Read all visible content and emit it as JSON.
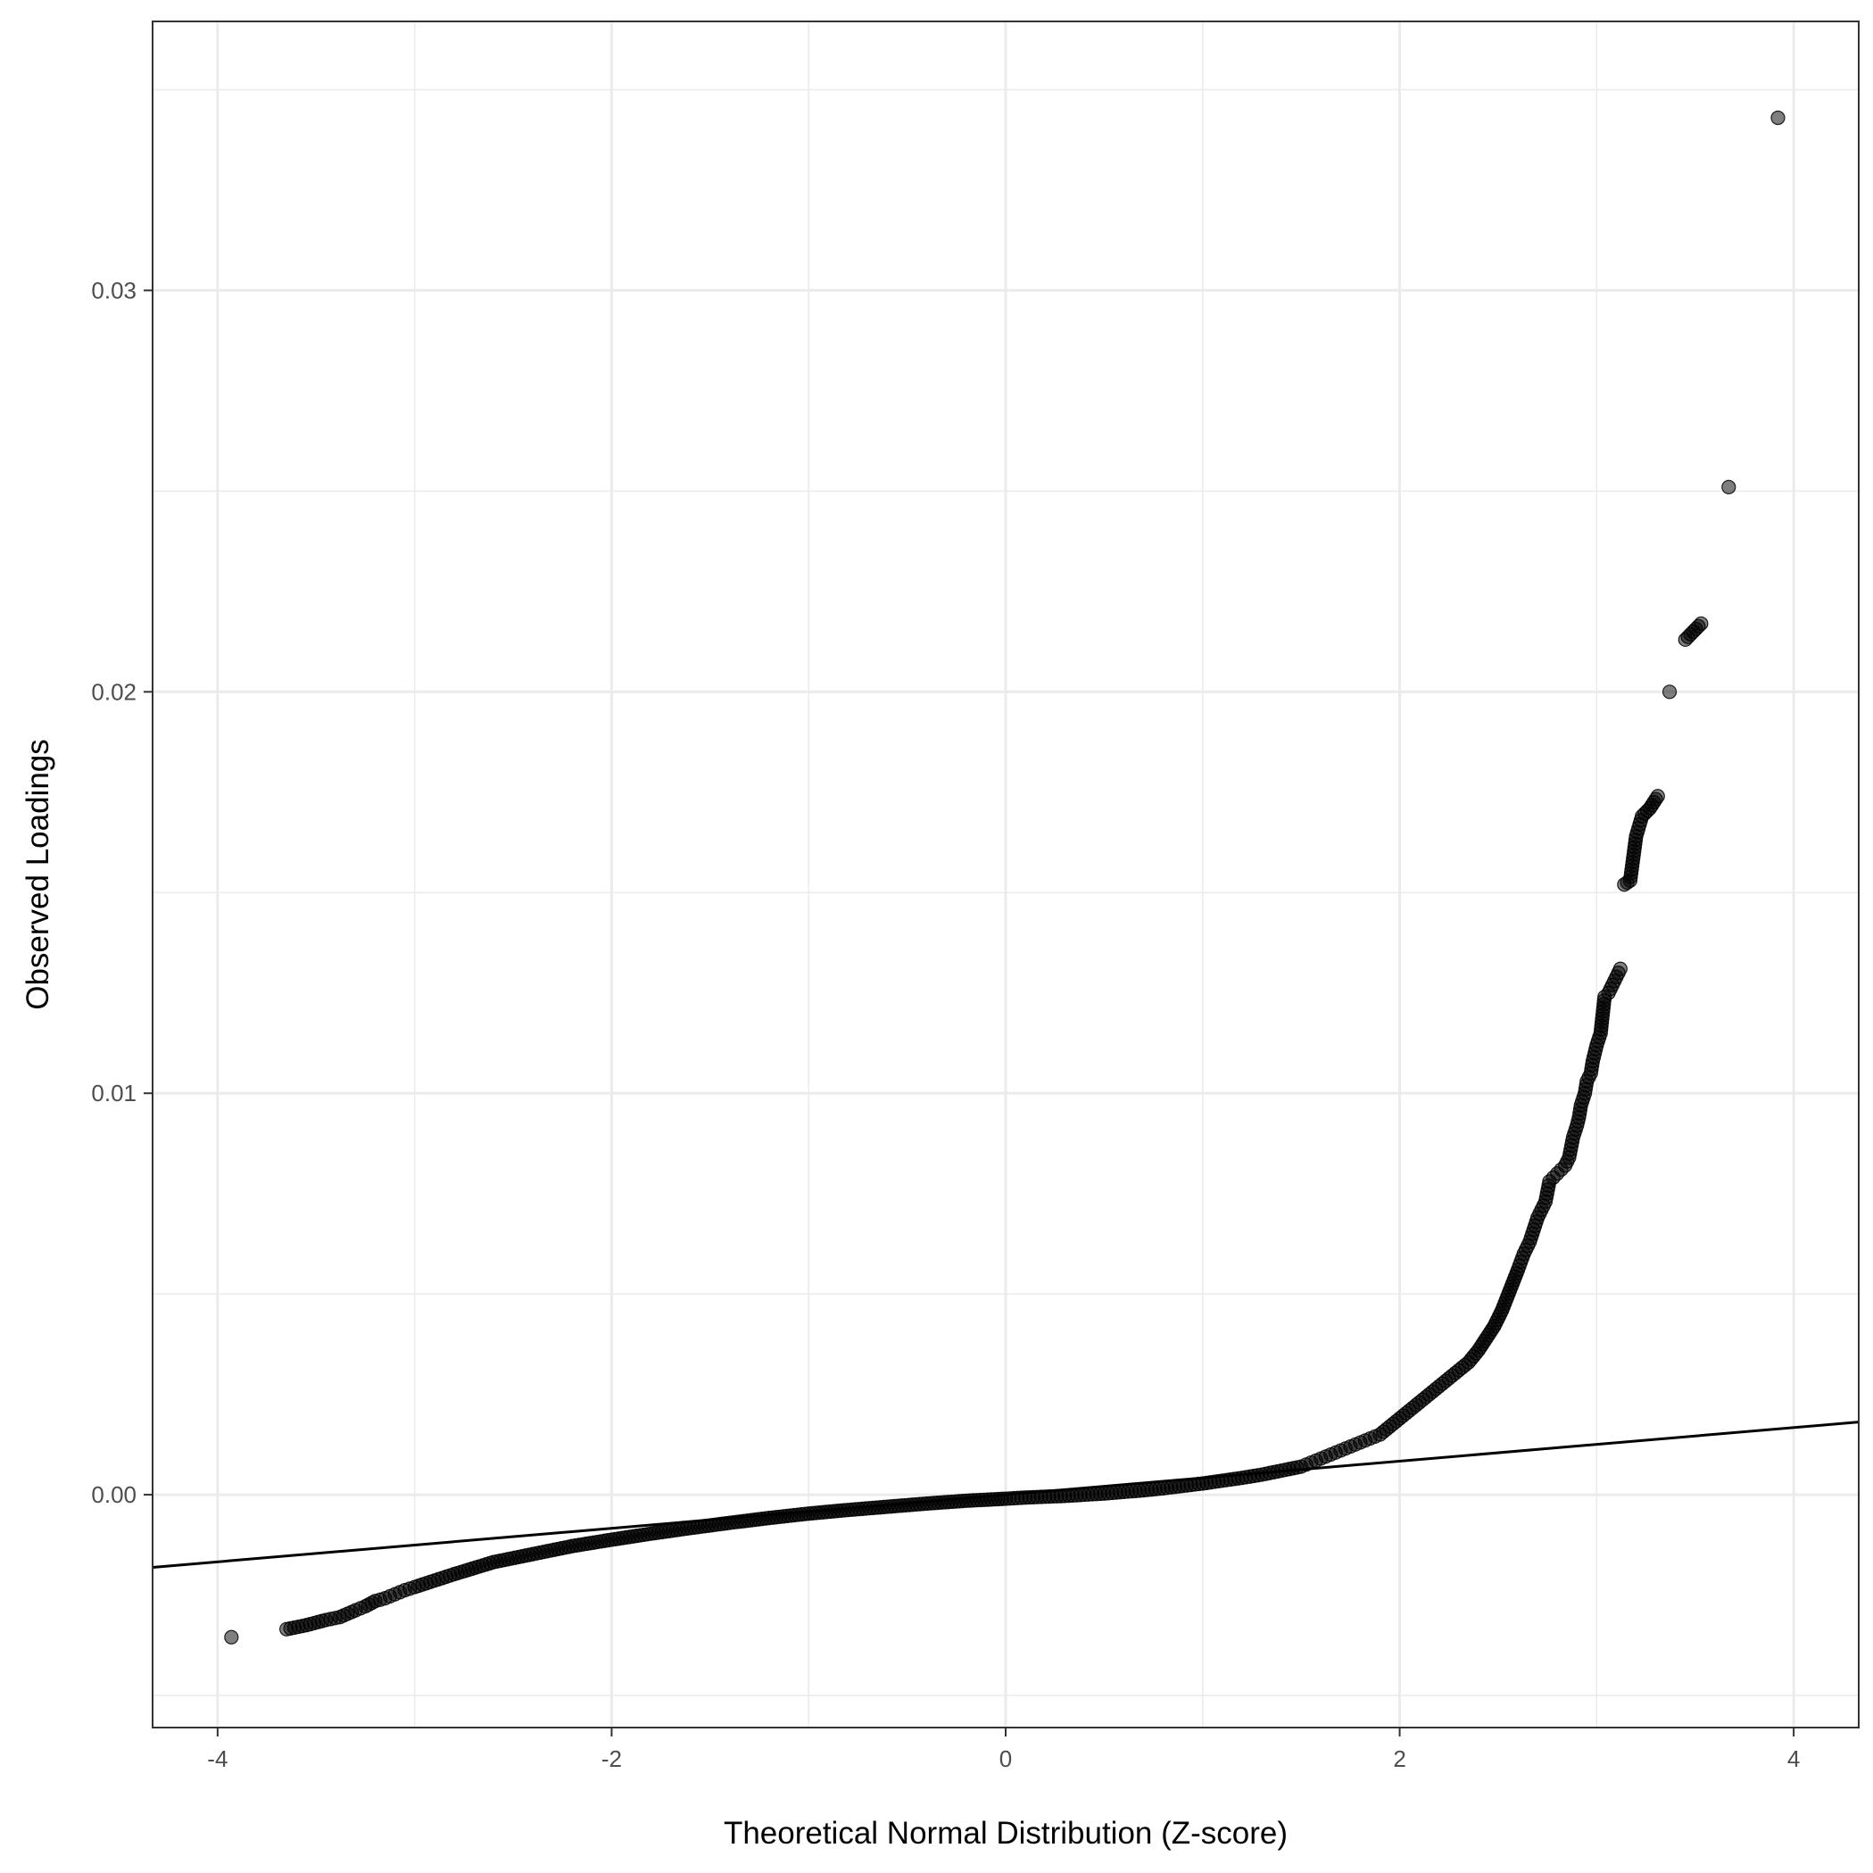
{
  "chart_data": {
    "type": "scatter",
    "title": "",
    "xlabel": "Theoretical Normal Distribution (Z-score)",
    "ylabel": "Observed Loadings",
    "xlim": [
      -4.33,
      4.33
    ],
    "ylim": [
      -0.0058,
      0.0367
    ],
    "x_ticks": [
      -4,
      -2,
      0,
      2,
      4
    ],
    "x_tick_labels": [
      "-4",
      "-2",
      "0",
      "2",
      "4"
    ],
    "y_ticks": [
      0.0,
      0.01,
      0.02,
      0.03
    ],
    "y_tick_labels": [
      "0.00",
      "0.01",
      "0.02",
      "0.03"
    ],
    "grid": true,
    "legend": "none",
    "colors": {
      "points": "#000000",
      "point_opacity": 0.5,
      "line": "#000000",
      "grid": "#ebebeb",
      "border": "#333333"
    },
    "reference_line": {
      "x": [
        -4.33,
        4.33
      ],
      "y": [
        -0.00181,
        0.00181
      ]
    },
    "series": [
      {
        "x": [
          3.92,
          3.67,
          3.53,
          3.45,
          3.37,
          3.31,
          3.27,
          3.23,
          3.2,
          3.17,
          3.14,
          3.12,
          3.1,
          3.08,
          3.06,
          3.04,
          3.02,
          3.0,
          2.98,
          2.97,
          2.95,
          2.94,
          2.92,
          2.91,
          2.9,
          2.88,
          2.86,
          2.84,
          2.82,
          2.8,
          2.78,
          2.76,
          2.74,
          2.72,
          2.7,
          2.68,
          2.66,
          2.63,
          2.6,
          2.56,
          2.52,
          2.48,
          2.44,
          2.4,
          2.35,
          2.3,
          2.25,
          2.2,
          2.15,
          2.1,
          2.05,
          2.0,
          1.95,
          1.9,
          1.85,
          1.8,
          1.75,
          1.7,
          1.65,
          1.6,
          1.55,
          1.5,
          1.4,
          1.3,
          1.2,
          1.1,
          1.0,
          0.9,
          0.8,
          0.7,
          0.6,
          0.5,
          0.4,
          0.3,
          0.2,
          0.1,
          0.0,
          -0.2,
          -0.4,
          -0.6,
          -0.8,
          -1.0,
          -1.2,
          -1.4,
          -1.6,
          -1.8,
          -2.0,
          -2.2,
          -2.4,
          -2.6,
          -2.8,
          -2.9,
          -3.0,
          -3.05,
          -3.1,
          -3.15,
          -3.2,
          -3.25,
          -3.3,
          -3.38,
          -3.45,
          -3.55,
          -3.65,
          -3.93
        ],
        "y": [
          0.0343,
          0.0251,
          0.0217,
          0.0213,
          0.02,
          0.0174,
          0.0171,
          0.0169,
          0.0164,
          0.0153,
          0.0152,
          0.0131,
          0.0129,
          0.0127,
          0.0125,
          0.0124,
          0.0115,
          0.0112,
          0.0108,
          0.0105,
          0.0103,
          0.01,
          0.0097,
          0.0094,
          0.0092,
          0.0089,
          0.0084,
          0.0082,
          0.0081,
          0.008,
          0.0079,
          0.0078,
          0.0073,
          0.0071,
          0.0069,
          0.0066,
          0.0063,
          0.006,
          0.0056,
          0.0051,
          0.0046,
          0.0042,
          0.0039,
          0.0036,
          0.0033,
          0.0031,
          0.0029,
          0.0027,
          0.0025,
          0.0023,
          0.0021,
          0.0019,
          0.0017,
          0.0015,
          0.0014,
          0.0013,
          0.0012,
          0.0011,
          0.001,
          0.0009,
          0.0008,
          0.0007,
          0.0006,
          0.0005,
          0.00042,
          0.00035,
          0.00028,
          0.00022,
          0.00016,
          0.00011,
          7e-05,
          3e-05,
          0.0,
          -3e-05,
          -5e-05,
          -7e-05,
          -0.0001,
          -0.00015,
          -0.00022,
          -0.0003,
          -0.00038,
          -0.00047,
          -0.00058,
          -0.0007,
          -0.00083,
          -0.00097,
          -0.00112,
          -0.00128,
          -0.00148,
          -0.00168,
          -0.00198,
          -0.00214,
          -0.0023,
          -0.00238,
          -0.00248,
          -0.00258,
          -0.00265,
          -0.00278,
          -0.00288,
          -0.00305,
          -0.00312,
          -0.00325,
          -0.00335,
          -0.00355
        ]
      }
    ]
  }
}
